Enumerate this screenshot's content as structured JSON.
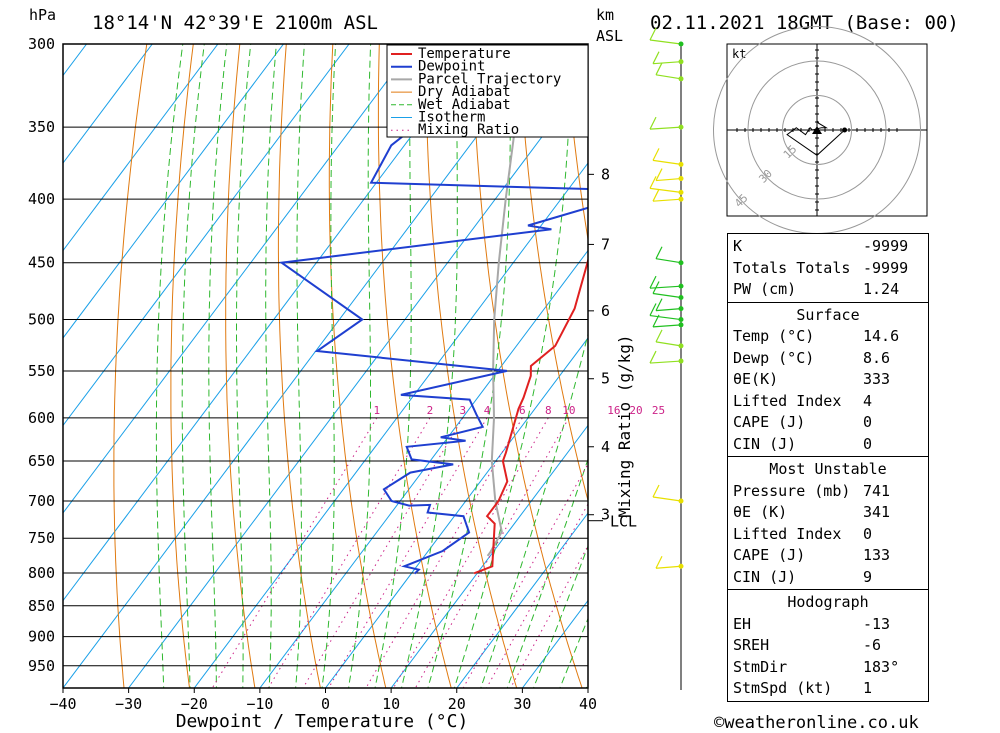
{
  "header": {
    "pressure_unit": "hPa",
    "location": "18°14'N  42°39'E  2100m  ASL",
    "km_label": "km",
    "asl_label": "ASL",
    "datetime": "02.11.2021  18GMT  (Base: 00)"
  },
  "footer": {
    "copyright": "©weatheronline.co.uk"
  },
  "chart_data": {
    "type": "skew-t",
    "title": "18°14'N  42°39'E  2100m  ASL",
    "xlabel": "Dewpoint / Temperature (°C)",
    "ylabel": "hPa",
    "xlim": [
      -40,
      40
    ],
    "plim": [
      300,
      990
    ],
    "x_ticks": [
      "−40",
      "−30",
      "−20",
      "−10",
      "0",
      "10",
      "20",
      "30",
      "40"
    ],
    "x_tick_values": [
      -40,
      -30,
      -20,
      -10,
      0,
      10,
      20,
      30,
      40
    ],
    "pressure_levels": [
      300,
      350,
      400,
      450,
      500,
      550,
      600,
      650,
      700,
      750,
      800,
      850,
      900,
      950
    ],
    "pressure_labels": [
      "300",
      "350",
      "400",
      "450",
      "500",
      "550",
      "600",
      "650",
      "700",
      "750",
      "800",
      "850",
      "900",
      "950"
    ],
    "km_ticks": [
      {
        "km": "8",
        "p": 382
      },
      {
        "km": "7",
        "p": 435
      },
      {
        "km": "6",
        "p": 492
      },
      {
        "km": "5",
        "p": 558
      },
      {
        "km": "4",
        "p": 633
      },
      {
        "km": "3",
        "p": 718
      }
    ],
    "lcl": {
      "label": "LCL",
      "p": 726
    },
    "mixing_ratio_axis": "Mixing Ratio (g/kg)",
    "mixing_ratios": [
      "1",
      "2",
      "3",
      "4",
      "6",
      "8",
      "10",
      "16",
      "20",
      "25"
    ],
    "mixing_ratio_values": [
      1,
      2,
      3,
      4,
      6,
      8,
      10,
      16,
      20,
      25
    ],
    "legend": [
      "Temperature",
      "Dewpoint",
      "Parcel Trajectory",
      "Dry Adiabat",
      "Wet Adiabat",
      "Isotherm",
      "Mixing Ratio"
    ],
    "colors": {
      "temperature": "#e02020",
      "dewpoint": "#1f3fd0",
      "parcel": "#a8a8a8",
      "dry_adiabat": "#e07a10",
      "wet_adiabat": "#2fb82f",
      "isotherm": "#1aa0e8",
      "mixing_ratio": "#cc2288"
    },
    "series": [
      {
        "name": "Temperature",
        "points": [
          [
            -16.4,
            300
          ],
          [
            -12,
            350
          ],
          [
            -10.9,
            360
          ],
          [
            -11.8,
            390
          ],
          [
            -11.4,
            400
          ],
          [
            -9.9,
            425
          ],
          [
            -10,
            435
          ],
          [
            -5.4,
            490
          ],
          [
            -4.1,
            525
          ],
          [
            -5.5,
            545
          ],
          [
            -4.4,
            555
          ],
          [
            -3,
            578
          ],
          [
            -2.5,
            590
          ],
          [
            0.6,
            640
          ],
          [
            1.1,
            650
          ],
          [
            4.1,
            675
          ],
          [
            5,
            700
          ],
          [
            5,
            720
          ],
          [
            7,
            730
          ],
          [
            11.5,
            790
          ],
          [
            9.6,
            800
          ],
          [
            9.6,
            801
          ]
        ]
      },
      {
        "name": "Dewpoint",
        "points": [
          [
            -44,
            300
          ],
          [
            -52,
            362
          ],
          [
            -50.8,
            388
          ],
          [
            -13.5,
            393
          ],
          [
            -11.4,
            400
          ],
          [
            -22,
            420
          ],
          [
            -18,
            423
          ],
          [
            -55.3,
            450
          ],
          [
            -36.5,
            500
          ],
          [
            -39.8,
            530
          ],
          [
            -8.6,
            550
          ],
          [
            -22,
            575
          ],
          [
            -11,
            580
          ],
          [
            -8.3,
            596
          ],
          [
            -5.9,
            610
          ],
          [
            -11.1,
            622
          ],
          [
            -6.9,
            626
          ],
          [
            -15.2,
            633
          ],
          [
            -13,
            648
          ],
          [
            -6.1,
            654
          ],
          [
            -11.7,
            664
          ],
          [
            -13.8,
            685
          ],
          [
            -11.3,
            700
          ],
          [
            -8.1,
            706
          ],
          [
            -5,
            705
          ],
          [
            -4.5,
            715
          ],
          [
            1.4,
            720
          ],
          [
            4.1,
            742
          ],
          [
            2.2,
            768
          ],
          [
            -1.9,
            790
          ],
          [
            0.7,
            795
          ],
          [
            0.5,
            801
          ]
        ]
      },
      {
        "name": "Parcel Trajectory",
        "points": [
          [
            -42.6,
            300
          ],
          [
            -35.2,
            350
          ],
          [
            -28.4,
            400
          ],
          [
            -22.2,
            450
          ],
          [
            -16.4,
            500
          ],
          [
            -10.7,
            550
          ],
          [
            -5.2,
            600
          ],
          [
            -0.6,
            650
          ],
          [
            4.5,
            700
          ],
          [
            9,
            741
          ],
          [
            9.6,
            770
          ],
          [
            9.6,
            775
          ]
        ]
      }
    ]
  },
  "hodograph": {
    "unit": "kt",
    "rings": [
      "15",
      "30",
      "45"
    ],
    "points": [
      [
        0,
        4
      ],
      [
        0.6,
        3
      ],
      [
        4,
        1
      ],
      [
        2,
        1
      ],
      [
        -2,
        0
      ],
      [
        -3,
        1
      ],
      [
        -5,
        -2
      ],
      [
        -9,
        1
      ],
      [
        -13,
        -2
      ],
      [
        0,
        -11
      ],
      [
        12,
        0
      ]
    ]
  },
  "wind_levels": [
    300,
    310,
    320,
    350,
    375,
    385,
    395,
    400,
    450,
    470,
    480,
    490,
    500,
    505,
    525,
    540,
    700,
    790
  ],
  "indices": {
    "basic": [
      {
        "label": "K",
        "value": "-9999"
      },
      {
        "label": "Totals Totals",
        "value": "-9999"
      },
      {
        "label": "PW (cm)",
        "value": "1.24"
      }
    ],
    "surface_title": "Surface",
    "surface": [
      {
        "label": "Temp (°C)",
        "value": "14.6"
      },
      {
        "label": "Dewp (°C)",
        "value": "8.6"
      },
      {
        "label": "θE(K)",
        "value": "333"
      },
      {
        "label": "Lifted Index",
        "value": "4"
      },
      {
        "label": "CAPE (J)",
        "value": "0"
      },
      {
        "label": "CIN (J)",
        "value": "0"
      }
    ],
    "mu_title": "Most Unstable",
    "mu": [
      {
        "label": "Pressure (mb)",
        "value": "741"
      },
      {
        "label": "θE (K)",
        "value": "341"
      },
      {
        "label": "Lifted Index",
        "value": "0"
      },
      {
        "label": "CAPE (J)",
        "value": "133"
      },
      {
        "label": "CIN (J)",
        "value": "9"
      }
    ],
    "hodo_title": "Hodograph",
    "hodo": [
      {
        "label": "EH",
        "value": "-13"
      },
      {
        "label": "SREH",
        "value": "-6"
      },
      {
        "label": "StmDir",
        "value": "183°"
      },
      {
        "label": "StmSpd (kt)",
        "value": "1"
      }
    ]
  }
}
